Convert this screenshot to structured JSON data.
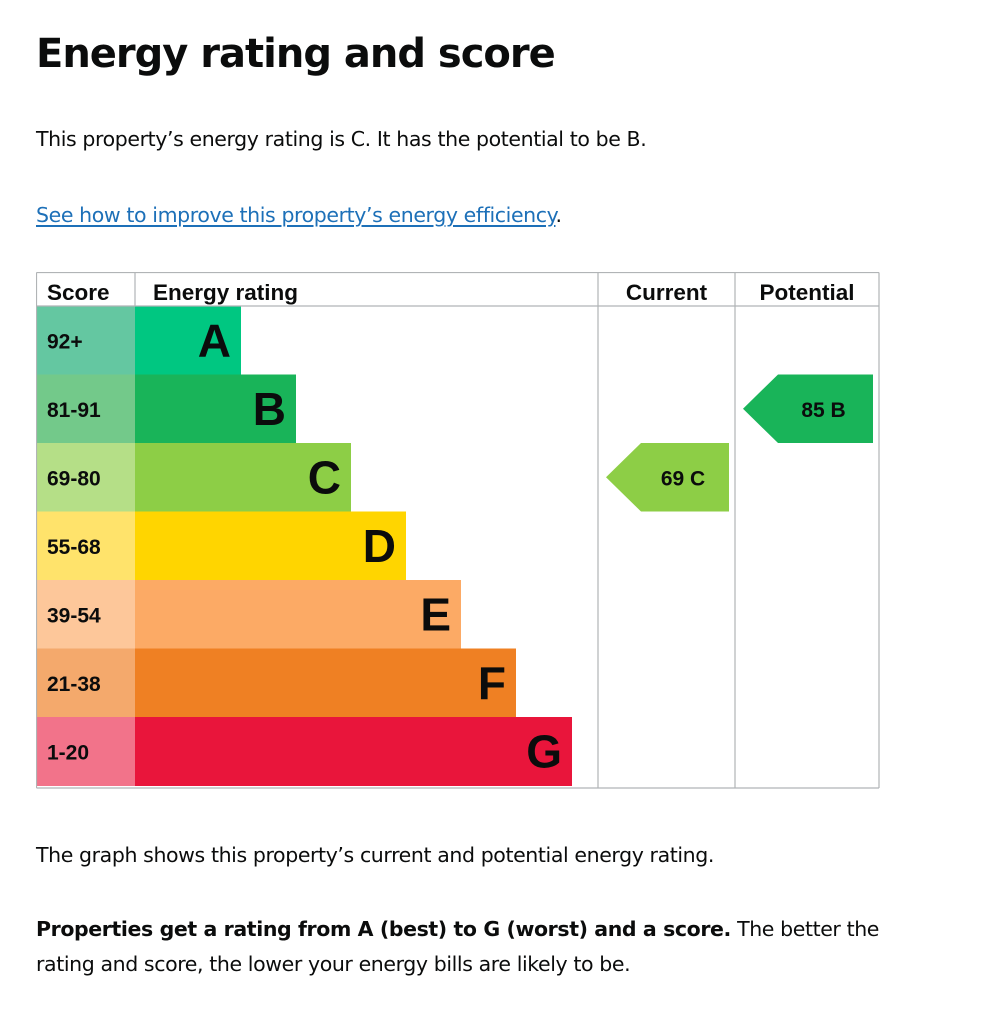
{
  "page": {
    "title": "Energy rating and score",
    "intro": "This property’s energy rating is C. It has the potential to be B.",
    "improve_link": "See how to improve this property’s energy efficiency",
    "improve_link_suffix": ".",
    "graph_note": "The graph shows this property’s current and potential energy rating.",
    "rating_bold": "Properties get a rating from A (best) to G (worst) and a score.",
    "rating_rest": " The better the rating and score, the lower your energy bills are likely to be."
  },
  "chart_data": {
    "type": "table",
    "headers": {
      "score": "Score",
      "rating": "Energy rating",
      "current": "Current",
      "potential": "Potential"
    },
    "bands": [
      {
        "letter": "A",
        "score_range": "92+",
        "min": 92,
        "max": 100,
        "color": "#00c781",
        "score_bg": "#64c7a1"
      },
      {
        "letter": "B",
        "score_range": "81-91",
        "min": 81,
        "max": 91,
        "color": "#19b459",
        "score_bg": "#73c98a"
      },
      {
        "letter": "C",
        "score_range": "69-80",
        "min": 69,
        "max": 80,
        "color": "#8dce46",
        "score_bg": "#b5df87"
      },
      {
        "letter": "D",
        "score_range": "55-68",
        "min": 55,
        "max": 68,
        "color": "#ffd500",
        "score_bg": "#ffe36b"
      },
      {
        "letter": "E",
        "score_range": "39-54",
        "min": 39,
        "max": 54,
        "color": "#fcaa65",
        "score_bg": "#fdc79a"
      },
      {
        "letter": "F",
        "score_range": "21-38",
        "min": 21,
        "max": 38,
        "color": "#ef8023",
        "score_bg": "#f4a96c"
      },
      {
        "letter": "G",
        "score_range": "1-20",
        "min": 1,
        "max": 20,
        "color": "#e9153b",
        "score_bg": "#f2738a"
      }
    ],
    "current": {
      "score": 69,
      "letter": "C",
      "label": "69 C",
      "color": "#8dce46"
    },
    "potential": {
      "score": 85,
      "letter": "B",
      "label": "85 B",
      "color": "#19b459"
    }
  }
}
